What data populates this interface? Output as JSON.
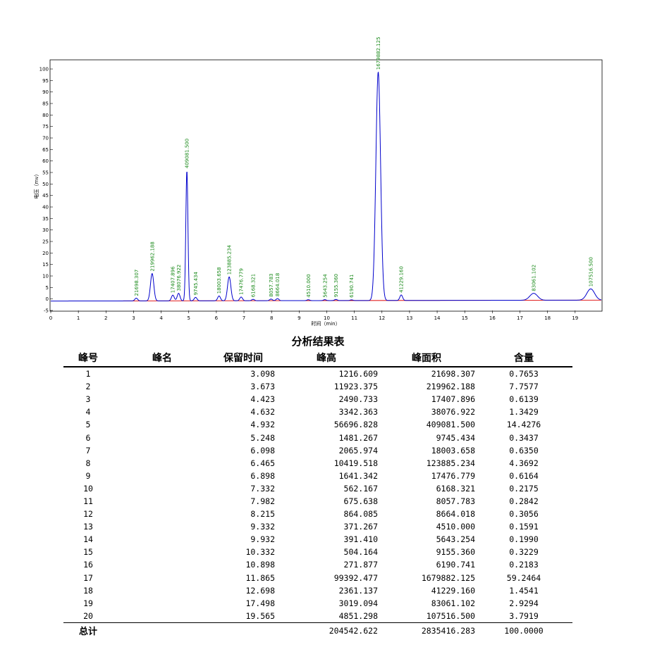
{
  "chart_data": {
    "type": "line",
    "xlabel": "时间（min）",
    "ylabel": "电压（mv）",
    "xlim": [
      0,
      20
    ],
    "ylim": [
      -5,
      100
    ],
    "x_ticks": [
      "0",
      "1",
      "2",
      "3",
      "4",
      "5",
      "6",
      "7",
      "8",
      "9",
      "10",
      "11",
      "12",
      "13",
      "14",
      "15",
      "16",
      "17",
      "18",
      "19"
    ],
    "y_ticks": [
      "-5",
      "0",
      "5",
      "10",
      "15",
      "20",
      "25",
      "30",
      "35",
      "40",
      "45",
      "50",
      "55",
      "60",
      "65",
      "70",
      "75",
      "80",
      "85",
      "90",
      "95",
      "100"
    ],
    "series": [
      {
        "color": "#0000cc",
        "peaks": [
          {
            "rt": 3.098,
            "height": 1.2,
            "label": "21698.307"
          },
          {
            "rt": 3.673,
            "height": 11.9,
            "label": "219962.188"
          },
          {
            "rt": 4.423,
            "height": 2.5,
            "label": "17407.896"
          },
          {
            "rt": 4.632,
            "height": 3.3,
            "label": "38076.922"
          },
          {
            "rt": 4.932,
            "height": 56.7,
            "label": "409081.500"
          },
          {
            "rt": 5.248,
            "height": 1.5,
            "label": "9745.434"
          },
          {
            "rt": 6.098,
            "height": 2.1,
            "label": "18003.658"
          },
          {
            "rt": 6.465,
            "height": 10.4,
            "label": "123885.234"
          },
          {
            "rt": 6.898,
            "height": 1.6,
            "label": "17476.779"
          },
          {
            "rt": 7.332,
            "height": 0.6,
            "label": "6168.321"
          },
          {
            "rt": 7.982,
            "height": 0.7,
            "label": "8057.783"
          },
          {
            "rt": 8.215,
            "height": 0.9,
            "label": "8664.018"
          },
          {
            "rt": 9.332,
            "height": 0.4,
            "label": "4510.000"
          },
          {
            "rt": 9.932,
            "height": 0.4,
            "label": "5643.254"
          },
          {
            "rt": 10.332,
            "height": 0.5,
            "label": "9155.360"
          },
          {
            "rt": 10.898,
            "height": 0.3,
            "label": "6190.741"
          },
          {
            "rt": 11.865,
            "height": 99.4,
            "label": "1679882.125"
          },
          {
            "rt": 12.698,
            "height": 2.4,
            "label": "41229.160"
          },
          {
            "rt": 17.498,
            "height": 3.0,
            "label": "83061.102"
          },
          {
            "rt": 19.565,
            "height": 4.9,
            "label": "107516.500"
          }
        ]
      }
    ],
    "baseline_color": "#dd0000"
  },
  "results": {
    "title": "分析结果表",
    "headers": [
      "峰号",
      "峰名",
      "保留时间",
      "峰高",
      "峰面积",
      "含量"
    ],
    "rows": [
      [
        "1",
        "",
        "3.098",
        "1216.609",
        "21698.307",
        "0.7653"
      ],
      [
        "2",
        "",
        "3.673",
        "11923.375",
        "219962.188",
        "7.7577"
      ],
      [
        "3",
        "",
        "4.423",
        "2490.733",
        "17407.896",
        "0.6139"
      ],
      [
        "4",
        "",
        "4.632",
        "3342.363",
        "38076.922",
        "1.3429"
      ],
      [
        "5",
        "",
        "4.932",
        "56696.828",
        "409081.500",
        "14.4276"
      ],
      [
        "6",
        "",
        "5.248",
        "1481.267",
        "9745.434",
        "0.3437"
      ],
      [
        "7",
        "",
        "6.098",
        "2065.974",
        "18003.658",
        "0.6350"
      ],
      [
        "8",
        "",
        "6.465",
        "10419.518",
        "123885.234",
        "4.3692"
      ],
      [
        "9",
        "",
        "6.898",
        "1641.342",
        "17476.779",
        "0.6164"
      ],
      [
        "10",
        "",
        "7.332",
        "562.167",
        "6168.321",
        "0.2175"
      ],
      [
        "11",
        "",
        "7.982",
        "675.638",
        "8057.783",
        "0.2842"
      ],
      [
        "12",
        "",
        "8.215",
        "864.085",
        "8664.018",
        "0.3056"
      ],
      [
        "13",
        "",
        "9.332",
        "371.267",
        "4510.000",
        "0.1591"
      ],
      [
        "14",
        "",
        "9.932",
        "391.410",
        "5643.254",
        "0.1990"
      ],
      [
        "15",
        "",
        "10.332",
        "504.164",
        "9155.360",
        "0.3229"
      ],
      [
        "16",
        "",
        "10.898",
        "271.877",
        "6190.741",
        "0.2183"
      ],
      [
        "17",
        "",
        "11.865",
        "99392.477",
        "1679882.125",
        "59.2464"
      ],
      [
        "18",
        "",
        "12.698",
        "2361.137",
        "41229.160",
        "1.4541"
      ],
      [
        "19",
        "",
        "17.498",
        "3019.094",
        "83061.102",
        "2.9294"
      ],
      [
        "20",
        "",
        "19.565",
        "4851.298",
        "107516.500",
        "3.7919"
      ]
    ],
    "total": {
      "label": "总计",
      "height": "204542.622",
      "area": "2835416.283",
      "content": "100.0000"
    }
  }
}
